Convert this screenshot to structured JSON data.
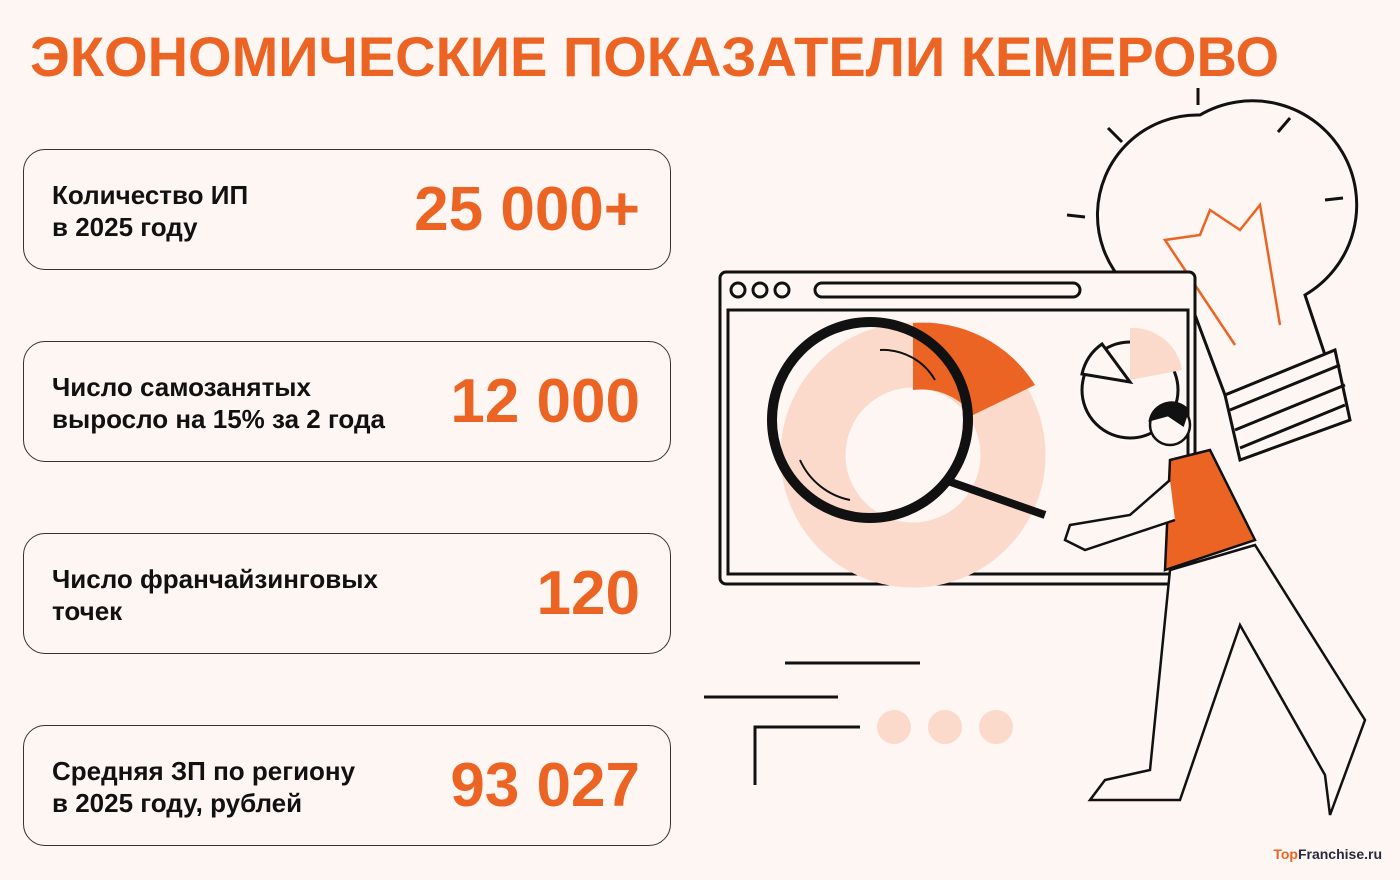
{
  "title": "ЭКОНОМИЧЕСКИЕ ПОКАЗАТЕЛИ КЕМЕРОВО",
  "cards": [
    {
      "label_line1": "Количество ИП",
      "label_line2": "в 2025 году",
      "value": "25 000+"
    },
    {
      "label_line1": "Число самозанятых",
      "label_line2": "выросло на 15% за 2 года",
      "value": "12 000"
    },
    {
      "label_line1": "Число франчайзинговых",
      "label_line2": "точек",
      "value": "120"
    },
    {
      "label_line1": "Средняя ЗП по региону",
      "label_line2": "в 2025 году, рублей",
      "value": "93 027"
    }
  ],
  "logo": {
    "part1": "Top",
    "part2": "Franchise.ru"
  },
  "colors": {
    "accent": "#ec6424",
    "background": "#fdf6f3",
    "light_accent": "#fbd9cb"
  },
  "illustration": "person-with-magnifier-browser-chart-lightbulb"
}
